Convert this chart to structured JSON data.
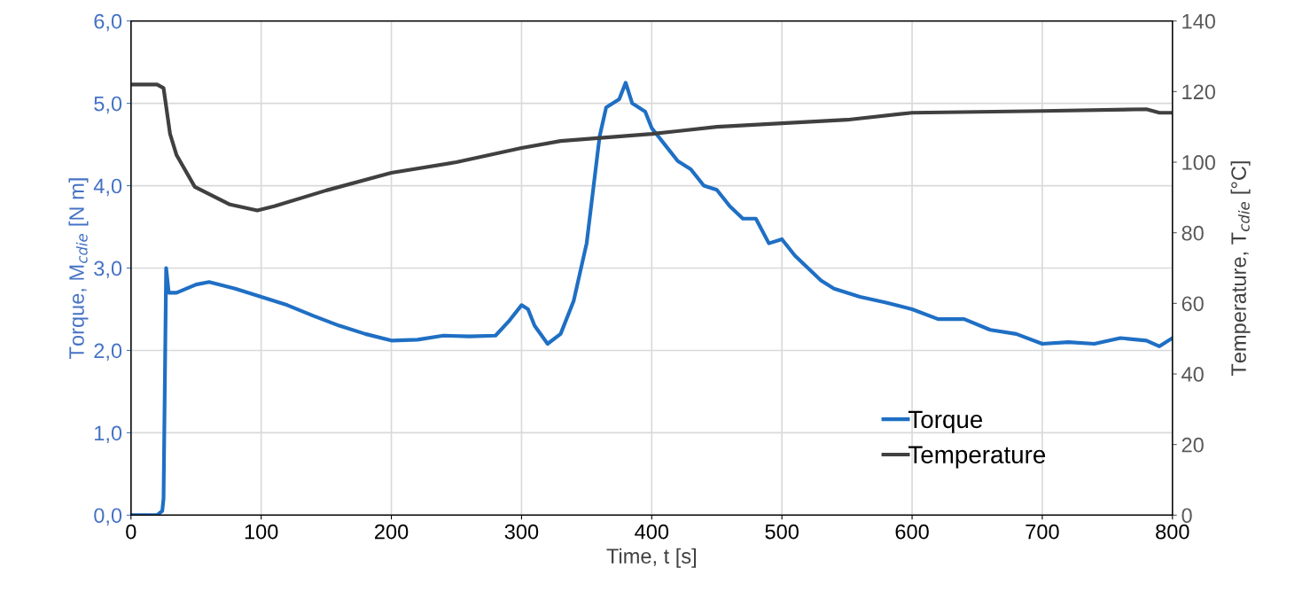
{
  "chart_data": {
    "type": "line",
    "xlabel": "Time, t [s]",
    "ylabel": "Torque, M$_{cdie}$ [N m]",
    "y2label": "Temperature, T$_{cdie}$ [°C]",
    "xlim": [
      0,
      800
    ],
    "xticks": [
      0,
      100,
      200,
      300,
      400,
      500,
      600,
      700,
      800
    ],
    "ylim": [
      0,
      6
    ],
    "yticks": [
      {
        "value": 0,
        "label": "0,0"
      },
      {
        "value": 1,
        "label": "1,0"
      },
      {
        "value": 2,
        "label": "2,0"
      },
      {
        "value": 3,
        "label": "3,0"
      },
      {
        "value": 4,
        "label": "4,0"
      },
      {
        "value": 5,
        "label": "5,0"
      },
      {
        "value": 6,
        "label": "6,0"
      }
    ],
    "y2lim": [
      0,
      140
    ],
    "y2ticks": [
      0,
      20,
      40,
      60,
      80,
      100,
      120,
      140
    ],
    "grid": true,
    "legend": "bottom right",
    "line_style": "solid",
    "marker": "none",
    "series": [
      {
        "name": "Torque",
        "color": "#1f6fc4",
        "x": [
          0,
          20,
          24,
          25,
          27,
          29,
          35,
          50,
          60,
          80,
          100,
          120,
          140,
          160,
          180,
          200,
          220,
          240,
          260,
          280,
          290,
          300,
          305,
          310,
          320,
          330,
          340,
          350,
          360,
          365,
          375,
          380,
          385,
          395,
          400,
          410,
          420,
          430,
          440,
          450,
          460,
          470,
          480,
          490,
          500,
          510,
          520,
          530,
          540,
          560,
          580,
          600,
          620,
          640,
          660,
          680,
          700,
          720,
          740,
          760,
          780,
          790,
          800
        ],
        "values": [
          0,
          0,
          0.05,
          0.2,
          3.0,
          2.7,
          2.7,
          2.8,
          2.83,
          2.75,
          2.65,
          2.55,
          2.42,
          2.3,
          2.2,
          2.12,
          2.13,
          2.18,
          2.17,
          2.18,
          2.35,
          2.55,
          2.5,
          2.3,
          2.08,
          2.2,
          2.6,
          3.3,
          4.6,
          4.95,
          5.05,
          5.25,
          5.0,
          4.9,
          4.7,
          4.5,
          4.3,
          4.2,
          4.0,
          3.95,
          3.75,
          3.6,
          3.6,
          3.3,
          3.35,
          3.15,
          3.0,
          2.85,
          2.75,
          2.65,
          2.58,
          2.5,
          2.38,
          2.38,
          2.25,
          2.2,
          2.08,
          2.1,
          2.08,
          2.15,
          2.12,
          2.05,
          2.15
        ]
      },
      {
        "name": "Temperature",
        "color": "#404040",
        "axis": "y2",
        "x": [
          0,
          20,
          25,
          30,
          35,
          49,
          76,
          97,
          110,
          150,
          200,
          250,
          300,
          330,
          400,
          450,
          500,
          550,
          600,
          700,
          780,
          790,
          800
        ],
        "values": [
          122,
          122,
          121,
          108,
          102,
          93,
          88,
          86.3,
          87.5,
          92,
          97,
          100,
          104,
          106,
          108,
          110,
          111,
          112,
          114,
          114.5,
          115,
          114,
          114
        ]
      }
    ]
  }
}
